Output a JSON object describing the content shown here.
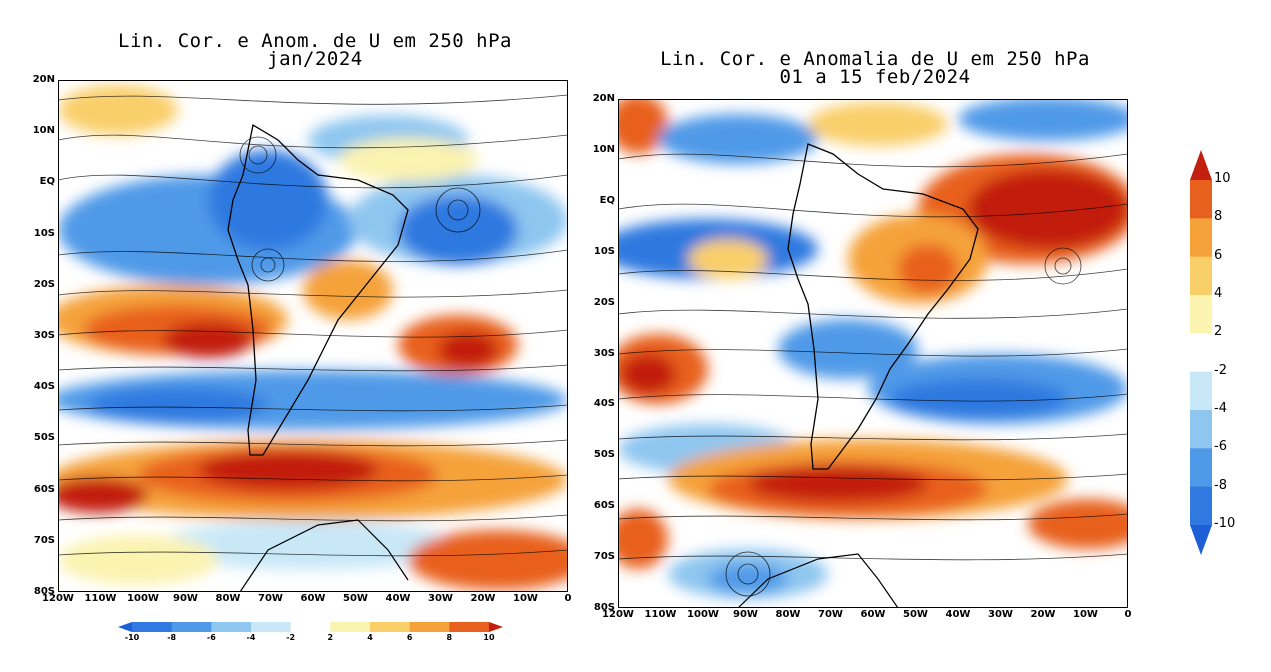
{
  "panels": [
    {
      "title_line1": "Lin. Cor. e Anom. de U em 250 hPa",
      "title_line2": "jan/2024",
      "lat_labels": [
        "20N",
        "10N",
        "EQ",
        "10S",
        "20S",
        "30S",
        "40S",
        "50S",
        "60S",
        "70S",
        "80S"
      ],
      "lon_labels": [
        "120W",
        "110W",
        "100W",
        "90W",
        "80W",
        "70W",
        "60W",
        "50W",
        "40W",
        "30W",
        "20W",
        "10W",
        "0"
      ]
    },
    {
      "title_line1": "Lin. Cor. e Anomalia de U em 250 hPa",
      "title_line2": "01 a 15 feb/2024",
      "lat_labels": [
        "20N",
        "10N",
        "EQ",
        "10S",
        "20S",
        "30S",
        "40S",
        "50S",
        "60S",
        "70S",
        "80S"
      ],
      "lon_labels": [
        "120W",
        "110W",
        "100W",
        "90W",
        "80W",
        "70W",
        "60W",
        "50W",
        "40W",
        "30W",
        "20W",
        "10W",
        "0"
      ]
    }
  ],
  "horizontal_colorbar": {
    "labels": [
      "-10",
      "-8",
      "-6",
      "-4",
      "-2",
      "2",
      "4",
      "6",
      "8",
      "10"
    ]
  },
  "vertical_colorbar": {
    "labels": [
      "10",
      "8",
      "6",
      "4",
      "2",
      "-2",
      "-4",
      "-6",
      "-8",
      "-10"
    ]
  },
  "colors": {
    "neg10": "#1c5fd6",
    "neg8": "#2f79e0",
    "neg6": "#4f9ae8",
    "neg4": "#8ec6f0",
    "neg2": "#c8e8f8",
    "zero": "#ffffff",
    "pos2": "#fbf3b0",
    "pos4": "#f9cf6a",
    "pos6": "#f5a23a",
    "pos8": "#e8601e",
    "pos10": "#c21f0f"
  }
}
